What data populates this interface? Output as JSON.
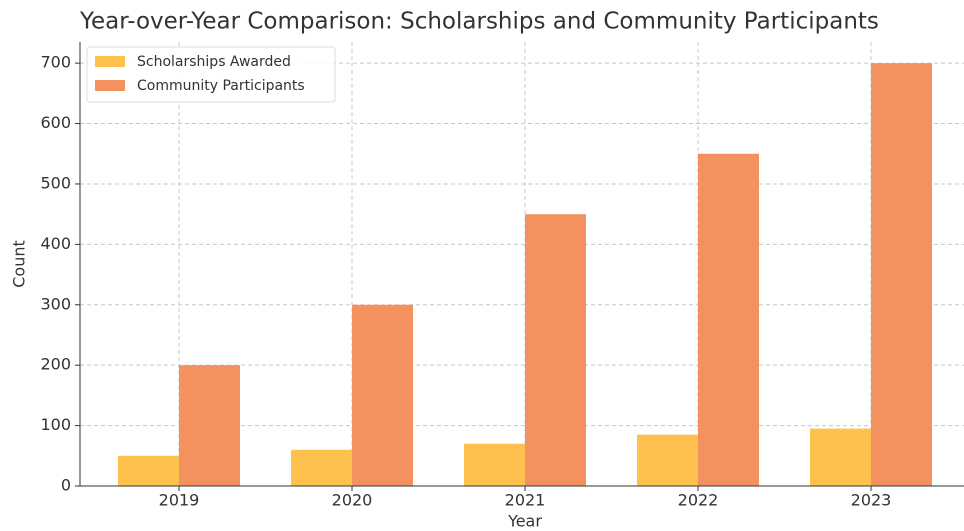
{
  "chart_data": {
    "type": "bar",
    "title": "Year-over-Year Comparison: Scholarships and Community Participants",
    "x_label": "Year",
    "y_label": "Count",
    "categories": [
      "2019",
      "2020",
      "2021",
      "2022",
      "2023"
    ],
    "series": [
      {
        "name": "Scholarships Awarded",
        "color": "#ffc14d",
        "values": [
          50,
          60,
          70,
          85,
          95
        ]
      },
      {
        "name": "Community Participants",
        "color": "#f4925f",
        "values": [
          200,
          300,
          450,
          550,
          700
        ]
      }
    ],
    "ylim": [
      0,
      735
    ],
    "yticks": [
      0,
      100,
      200,
      300,
      400,
      500,
      600,
      700
    ],
    "grid": true,
    "legend": "upper-left"
  }
}
